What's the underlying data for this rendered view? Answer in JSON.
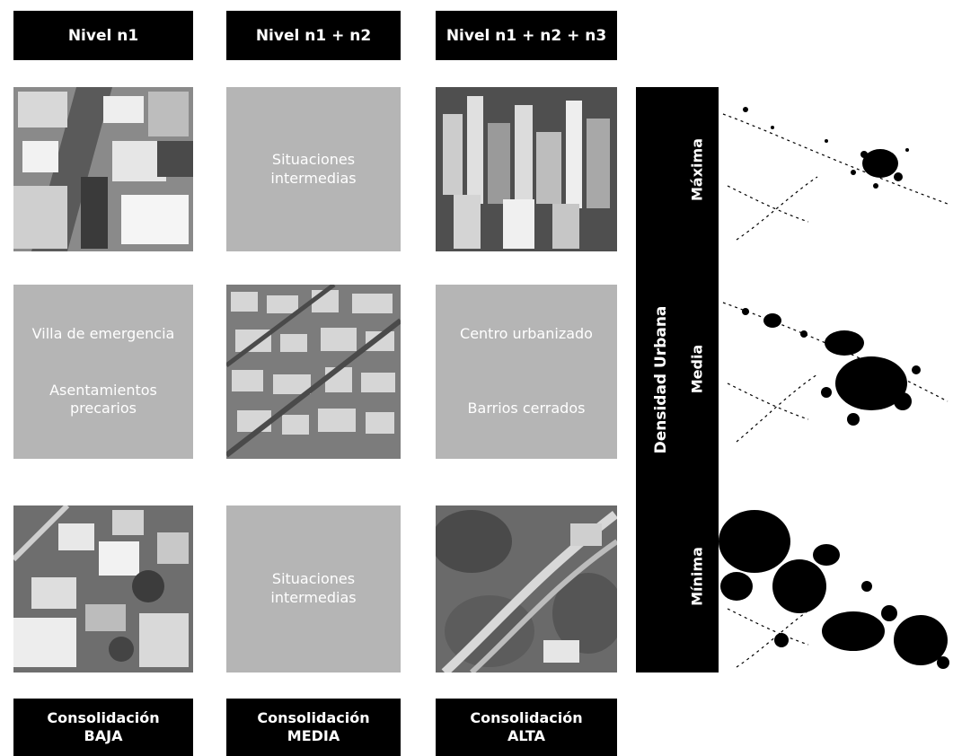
{
  "headers": {
    "level1": "Nivel n1",
    "level2": "Nivel n1 + n2",
    "level3": "Nivel n1 + n2 + n3"
  },
  "cells": {
    "row1_col2": {
      "line1": "Situaciones",
      "line2": "intermedias"
    },
    "row2_col1": {
      "text1": "Villa de emergencia",
      "text2a": "Asentamientos",
      "text2b": "precarios"
    },
    "row2_col3": {
      "text1": "Centro urbanizado",
      "text2": "Barrios cerrados"
    },
    "row3_col2": {
      "line1": "Situaciones",
      "line2": "intermedias"
    }
  },
  "footers": {
    "baja": {
      "line1": "Consolidación",
      "line2": "BAJA"
    },
    "media": {
      "line1": "Consolidación",
      "line2": "MEDIA"
    },
    "alta": {
      "line1": "Consolidación",
      "line2": "ALTA"
    }
  },
  "density": {
    "title": "Densidad Urbana",
    "levels": [
      "Máxima",
      "Media",
      "Mínima"
    ]
  },
  "colors": {
    "bar": "#000000",
    "cell_fill": "#b5b5b5",
    "text_light": "#ffffff"
  }
}
